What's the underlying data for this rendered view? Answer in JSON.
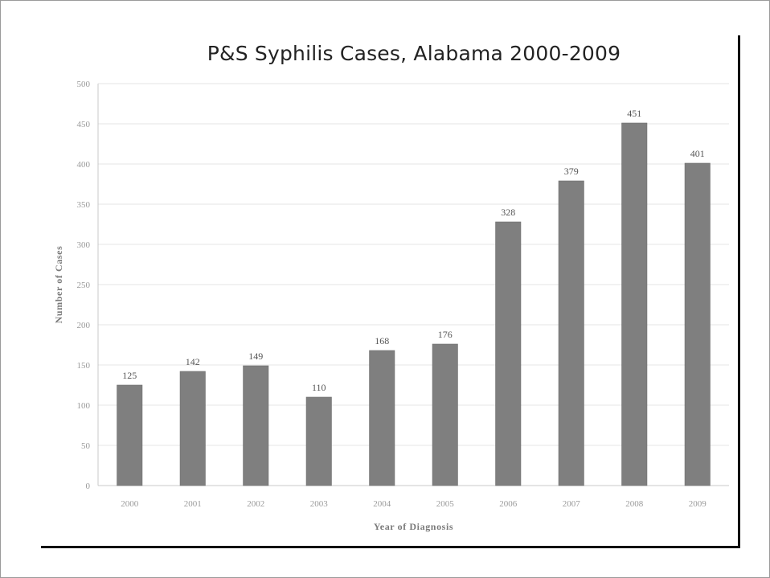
{
  "chart_data": {
    "type": "bar",
    "title": "P&S Syphilis Cases, Alabama 2000-2009",
    "xlabel": "Year of Diagnosis",
    "ylabel": "Number of Cases",
    "categories": [
      "2000",
      "2001",
      "2002",
      "2003",
      "2004",
      "2005",
      "2006",
      "2007",
      "2008",
      "2009"
    ],
    "values": [
      125,
      142,
      149,
      110,
      168,
      176,
      328,
      379,
      451,
      401
    ],
    "data_labels": [
      "125",
      "142",
      "149",
      "110",
      "168",
      "176",
      "328",
      "379",
      "451",
      "401"
    ],
    "ylim": [
      0,
      500
    ],
    "yticks": [
      "0",
      "50",
      "100",
      "150",
      "200",
      "250",
      "300",
      "350",
      "400",
      "450",
      "500"
    ],
    "grid": true,
    "legend": "none",
    "colors": {
      "bar": "#7f7f7f",
      "gridline": "#e4e4e4",
      "axis": "#c8c8c8"
    }
  }
}
